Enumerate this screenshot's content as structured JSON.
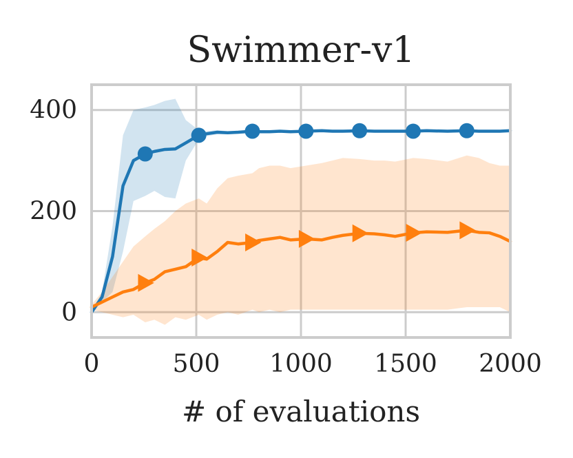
{
  "chart_data": {
    "type": "line",
    "title": "Swimmer-v1",
    "xlabel": "# of evaluations",
    "ylabel": "",
    "xlim": [
      0,
      2000
    ],
    "ylim": [
      -50,
      450
    ],
    "xticks": [
      0,
      500,
      1000,
      1500,
      2000
    ],
    "yticks": [
      0,
      200,
      400
    ],
    "xtick_labels": [
      "0",
      "500",
      "1000",
      "1500",
      "2000"
    ],
    "ytick_labels": [
      "0",
      "200",
      "400"
    ],
    "grid": true,
    "series": [
      {
        "name": "blue",
        "color": "#1f77b4",
        "marker": "circle",
        "x": [
          0,
          50,
          100,
          150,
          200,
          256,
          300,
          350,
          400,
          450,
          512,
          550,
          600,
          650,
          700,
          768,
          800,
          850,
          900,
          950,
          1024,
          1100,
          1150,
          1200,
          1280,
          1350,
          1400,
          1450,
          1536,
          1600,
          1700,
          1792,
          1850,
          1900,
          1950,
          2000
        ],
        "mean": [
          0,
          30,
          110,
          250,
          300,
          313,
          318,
          322,
          323,
          335,
          350,
          353,
          356,
          355,
          356,
          358,
          357,
          357,
          358,
          357,
          358,
          359,
          358,
          358,
          359,
          358,
          358,
          358,
          358,
          359,
          358,
          359,
          358,
          358,
          358,
          359
        ],
        "lower": [
          0,
          20,
          40,
          120,
          220,
          230,
          240,
          228,
          225,
          300,
          342,
          348,
          352,
          352,
          353,
          355,
          355,
          355,
          356,
          355,
          356,
          357,
          356,
          356,
          357,
          356,
          356,
          356,
          356,
          357,
          356,
          357,
          356,
          356,
          356,
          357
        ],
        "upper": [
          0,
          40,
          170,
          350,
          400,
          405,
          410,
          418,
          422,
          380,
          360,
          358,
          360,
          358,
          359,
          361,
          359,
          359,
          360,
          359,
          360,
          361,
          360,
          360,
          361,
          360,
          360,
          360,
          360,
          361,
          360,
          361,
          360,
          360,
          360,
          361
        ],
        "marker_x": [
          256,
          512,
          768,
          1024,
          1280,
          1536,
          1792
        ]
      },
      {
        "name": "orange",
        "color": "#ff7f0e",
        "marker": "triangle-right",
        "x": [
          0,
          50,
          100,
          150,
          200,
          256,
          300,
          350,
          400,
          450,
          512,
          550,
          600,
          650,
          700,
          768,
          800,
          850,
          900,
          950,
          1024,
          1100,
          1150,
          1200,
          1280,
          1350,
          1400,
          1450,
          1536,
          1600,
          1700,
          1792,
          1850,
          1900,
          1950,
          2000
        ],
        "mean": [
          10,
          20,
          30,
          40,
          45,
          58,
          65,
          80,
          85,
          90,
          108,
          105,
          120,
          138,
          135,
          138,
          142,
          145,
          148,
          143,
          145,
          143,
          148,
          152,
          156,
          155,
          153,
          150,
          157,
          159,
          158,
          162,
          158,
          157,
          150,
          140
        ],
        "lower": [
          5,
          0,
          -5,
          -10,
          -5,
          -20,
          -15,
          -25,
          -10,
          -15,
          -5,
          -15,
          -5,
          0,
          -5,
          5,
          0,
          5,
          0,
          5,
          5,
          5,
          5,
          5,
          5,
          5,
          5,
          5,
          5,
          5,
          5,
          10,
          10,
          10,
          10,
          0
        ],
        "upper": [
          15,
          40,
          70,
          100,
          130,
          150,
          165,
          180,
          200,
          215,
          225,
          215,
          245,
          265,
          270,
          275,
          285,
          290,
          290,
          285,
          290,
          295,
          300,
          305,
          303,
          300,
          300,
          298,
          305,
          303,
          298,
          310,
          305,
          295,
          290,
          290
        ],
        "marker_x": [
          256,
          512,
          768,
          1024,
          1280,
          1536,
          1792
        ]
      }
    ]
  }
}
